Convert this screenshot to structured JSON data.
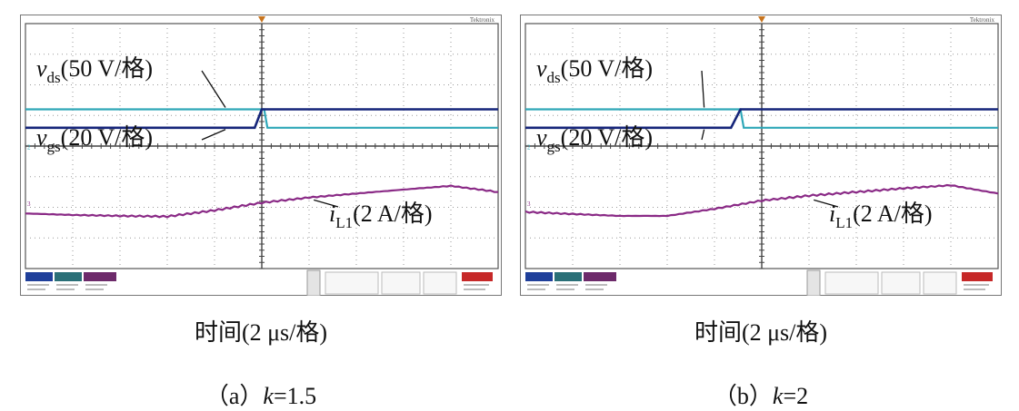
{
  "panels": [
    {
      "id": "a",
      "caption_prefix": "（a）",
      "k_symbol": "k",
      "k_value": "=1.5",
      "time_label": "时间(2 μs/格)",
      "vds_label": {
        "sym": "v",
        "sub": "ds",
        "scale": "(50 V/格)"
      },
      "vgs_label": {
        "sym": "v",
        "sub": "gs",
        "scale": "(20 V/格)"
      },
      "il_label": {
        "sym": "i",
        "sub": "L1",
        "scale": "(2 A/格)"
      },
      "brand": "Tektronix"
    },
    {
      "id": "b",
      "caption_prefix": "（b）",
      "k_symbol": "k",
      "k_value": "=2",
      "time_label": "时间(2 μs/格)",
      "vds_label": {
        "sym": "v",
        "sub": "ds",
        "scale": "(50 V/格)"
      },
      "vgs_label": {
        "sym": "v",
        "sub": "gs",
        "scale": "(20 V/格)"
      },
      "il_label": {
        "sym": "i",
        "sub": "L1",
        "scale": "(2 A/格)"
      },
      "brand": "Tektronix"
    }
  ],
  "colors": {
    "vds": "#2fa7b8",
    "vgs": "#15257a",
    "il": "#8a2a86",
    "grid": "#9a9a9a",
    "ch1_badge": "#1f3f9a",
    "ch2_badge": "#2a6f77",
    "ch3_badge": "#6d2a6a",
    "stop_badge": "#c62828"
  },
  "chart_data": [
    {
      "type": "line",
      "title": "",
      "xlabel": "时间(2 μs/格)",
      "ylabel": "",
      "xlim": [
        0,
        10
      ],
      "ylim": [
        0,
        8
      ],
      "x_unit_per_div": "2 μs",
      "series": [
        {
          "name": "vds",
          "x": [
            0,
            5.05,
            5.12,
            10
          ],
          "values": [
            5.2,
            5.2,
            4.6,
            4.6
          ]
        },
        {
          "name": "vgs",
          "x": [
            0,
            4.85,
            5.0,
            10
          ],
          "values": [
            4.6,
            4.6,
            5.2,
            5.2
          ]
        },
        {
          "name": "iL1",
          "x": [
            0,
            1,
            2,
            3,
            4,
            5,
            6,
            7,
            8,
            9,
            10
          ],
          "values": [
            1.8,
            1.75,
            1.72,
            1.7,
            1.9,
            2.15,
            2.32,
            2.45,
            2.58,
            2.7,
            2.5
          ]
        }
      ]
    },
    {
      "type": "line",
      "title": "",
      "xlabel": "时间(2 μs/格)",
      "ylabel": "",
      "xlim": [
        0,
        10
      ],
      "ylim": [
        0,
        8
      ],
      "x_unit_per_div": "2 μs",
      "series": [
        {
          "name": "vds",
          "x": [
            0,
            4.55,
            4.62,
            10
          ],
          "values": [
            5.2,
            5.2,
            4.6,
            4.6
          ]
        },
        {
          "name": "vgs",
          "x": [
            0,
            4.35,
            4.55,
            10
          ],
          "values": [
            4.6,
            4.6,
            5.2,
            5.2
          ]
        },
        {
          "name": "iL1",
          "x": [
            0,
            1,
            2,
            3,
            4,
            5,
            6,
            7,
            8,
            9,
            10
          ],
          "values": [
            1.85,
            1.78,
            1.72,
            1.72,
            1.95,
            2.22,
            2.38,
            2.5,
            2.62,
            2.72,
            2.45
          ]
        }
      ]
    }
  ]
}
